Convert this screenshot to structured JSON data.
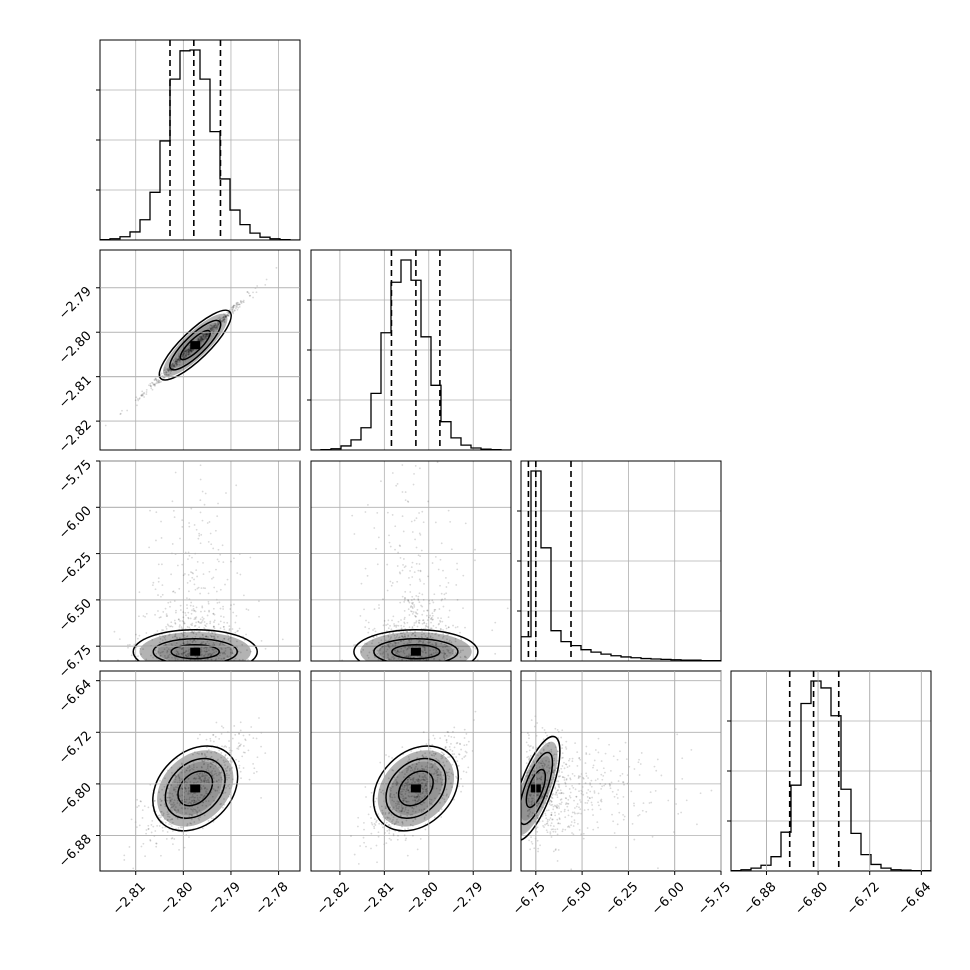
{
  "chart_data": {
    "type": "corner",
    "grid": true,
    "colors": {
      "line": "#000000",
      "grid": "#b0b0b0",
      "points": "#000000"
    },
    "params": [
      {
        "index": 0,
        "range": [
          -2.8175,
          -2.7755
        ],
        "ticks": [
          -2.81,
          -2.8,
          -2.79,
          -2.78
        ],
        "tick_labels": [
          "−2.81",
          "−2.80",
          "−2.79",
          "−2.78"
        ],
        "quantiles": [
          -2.8028,
          -2.7978,
          -2.7922
        ]
      },
      {
        "index": 1,
        "range": [
          -2.8265,
          -2.7815
        ],
        "ticks": [
          -2.82,
          -2.81,
          -2.8,
          -2.79
        ],
        "tick_labels": [
          "−2.82",
          "−2.81",
          "−2.80",
          "−2.79"
        ],
        "quantiles": [
          -2.8084,
          -2.8029,
          -2.7975
        ]
      },
      {
        "index": 2,
        "range": [
          -6.83,
          -5.75
        ],
        "ticks": [
          -6.75,
          -6.5,
          -6.25,
          -6.0,
          -5.75
        ],
        "tick_labels": [
          "−6.75",
          "−6.50",
          "−6.25",
          "−6.00",
          "−5.75"
        ],
        "quantiles": [
          -6.79,
          -6.75,
          -6.56
        ]
      },
      {
        "index": 3,
        "range": [
          -6.935,
          -6.625
        ],
        "ticks": [
          -6.88,
          -6.8,
          -6.72,
          -6.64
        ],
        "tick_labels": [
          "−6.88",
          "−6.80",
          "−6.72",
          "−6.64"
        ],
        "quantiles": [
          -6.844,
          -6.807,
          -6.768
        ]
      }
    ],
    "histograms": [
      {
        "param": 0,
        "bins": 20,
        "counts": [
          1,
          3,
          8,
          20,
          50,
          118,
          245,
          398,
          468,
          470,
          398,
          268,
          151,
          74,
          38,
          17,
          7,
          3,
          1,
          0
        ]
      },
      {
        "param": 1,
        "bins": 20,
        "counts": [
          0,
          1,
          3,
          10,
          25,
          55,
          140,
          290,
          415,
          470,
          420,
          280,
          160,
          70,
          30,
          12,
          5,
          2,
          1,
          0
        ]
      },
      {
        "param": 2,
        "bins": 20,
        "counts": [
          60,
          470,
          280,
          75,
          48,
          38,
          28,
          22,
          17,
          13,
          10,
          8,
          6,
          5,
          4,
          3,
          2,
          2,
          1,
          1
        ]
      },
      {
        "param": 3,
        "bins": 20,
        "counts": [
          1,
          3,
          7,
          14,
          35,
          95,
          210,
          410,
          465,
          448,
          380,
          200,
          92,
          40,
          16,
          7,
          3,
          2,
          1,
          1
        ]
      }
    ],
    "pairs": [
      {
        "x_param": 0,
        "y_param": 1,
        "mean": [
          -2.7975,
          -2.8029
        ],
        "sd": [
          0.0054,
          0.0054
        ],
        "rho": 0.995
      },
      {
        "x_param": 0,
        "y_param": 2,
        "mean": [
          -2.7975,
          -6.78
        ],
        "sd": [
          0.0054,
          0.04
        ],
        "rho": 0.0
      },
      {
        "x_param": 1,
        "y_param": 2,
        "mean": [
          -2.8029,
          -6.78
        ],
        "sd": [
          0.0054,
          0.04
        ],
        "rho": 0.0
      },
      {
        "x_param": 0,
        "y_param": 3,
        "mean": [
          -2.7975,
          -6.807
        ],
        "sd": [
          0.0054,
          0.04
        ],
        "rho": 0.7
      },
      {
        "x_param": 1,
        "y_param": 3,
        "mean": [
          -2.8029,
          -6.807
        ],
        "sd": [
          0.0054,
          0.04
        ],
        "rho": 0.7
      },
      {
        "x_param": 2,
        "y_param": 3,
        "mean": [
          -6.75,
          -6.807
        ],
        "sd": [
          0.1,
          0.04
        ],
        "rho": -0.6
      }
    ]
  }
}
